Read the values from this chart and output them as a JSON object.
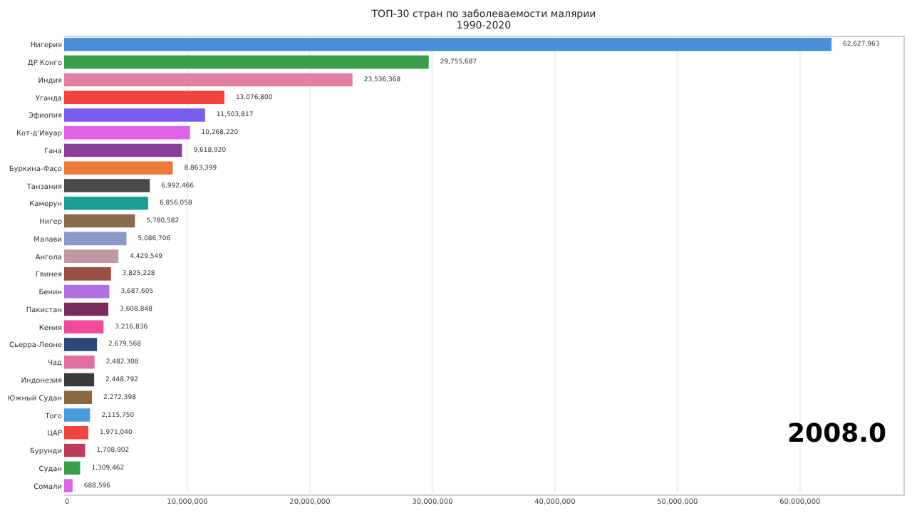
{
  "chart_data": {
    "type": "bar",
    "orientation": "horizontal",
    "title": "ТОП-30 стран по заболеваемости малярии",
    "subtitle": "1990-2020",
    "categories": [
      "Нигерия",
      "ДР Конго",
      "Индия",
      "Уганда",
      "Эфиопия",
      "Кот-д'Ивуар",
      "Гана",
      "Буркина-Фасо",
      "Танзания",
      "Камерун",
      "Нигер",
      "Малави",
      "Ангола",
      "Гвинея",
      "Бенин",
      "Пакистан",
      "Кения",
      "Сьерра-Леоне",
      "Чад",
      "Индонезия",
      "Южный Судан",
      "Того",
      "ЦАР",
      "Бурунди",
      "Судан",
      "Сомали"
    ],
    "values": [
      62627963,
      29755687,
      23536368,
      13076800,
      11503817,
      10268220,
      9618920,
      8863399,
      6992466,
      6856058,
      5780582,
      5086706,
      4429549,
      3825228,
      3687605,
      3608848,
      3216836,
      2679568,
      2482308,
      2448792,
      2272398,
      2115750,
      1971040,
      1708902,
      1309462,
      688596
    ],
    "colors": [
      "#4a90d9",
      "#3a9e4a",
      "#e57fa0",
      "#f2453d",
      "#7a5cf0",
      "#e060e8",
      "#8a3f9a",
      "#f07a3a",
      "#4a4a4a",
      "#1aa09a",
      "#8b6a4a",
      "#8a9ac8",
      "#c09aa0",
      "#9a5040",
      "#b070e0",
      "#7a2a5a",
      "#f04a9a",
      "#2a4a7a",
      "#e070a0",
      "#3a3a3a",
      "#8a6a40",
      "#4a9ae0",
      "#f2453d",
      "#c03a5a",
      "#3a9e4a",
      "#e060e8"
    ],
    "xlim": [
      0,
      68500000
    ],
    "xticks": [
      0,
      {
        "value": 10000000,
        "label": "10,000,000"
      },
      {
        "value": 20000000,
        "label": "20,000,000"
      },
      {
        "value": 30000000,
        "label": "30,000,000"
      },
      {
        "value": 40000000,
        "label": "40,000,000"
      },
      {
        "value": 50000000,
        "label": "50,000,000"
      },
      {
        "value": 60000000,
        "label": "60,000,000"
      }
    ],
    "value_labels": [
      "62,627,963",
      "29,755,687",
      "23,536,368",
      "13,076,800",
      "11,503,817",
      "10,268,220",
      "9,618,920",
      "8,863,399",
      "6,992,466",
      "6,856,058",
      "5,780,582",
      "5,086,706",
      "4,429,549",
      "3,825,228",
      "3,687,605",
      "3,608,848",
      "3,216,836",
      "2,679,568",
      "2,482,308",
      "2,448,792",
      "2,272,398",
      "2,115,750",
      "1,971,040",
      "1,708,902",
      "1,309,462",
      "688,596"
    ],
    "grid": "x",
    "annotations": [
      "2008.0"
    ]
  }
}
